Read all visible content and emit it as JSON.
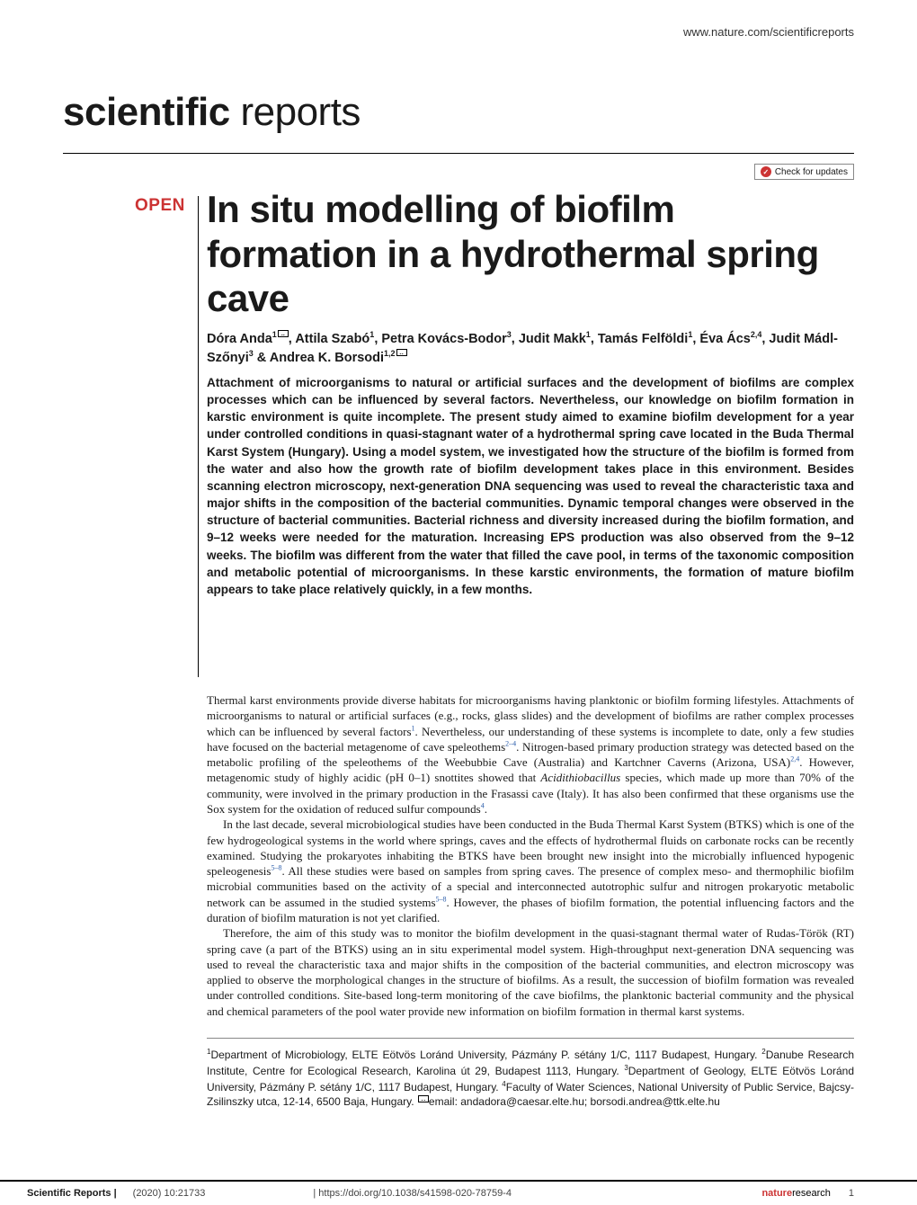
{
  "header": {
    "url": "www.nature.com/scientificreports"
  },
  "journal": {
    "bold": "scientific",
    "light": " reports"
  },
  "updates": {
    "label": "Check for updates"
  },
  "badge": {
    "open": "OPEN"
  },
  "title": "In situ modelling of biofilm formation in a hydrothermal spring cave",
  "authors_html": "Dóra Anda<sup>1</sup><span class='env-icon' data-name='envelope-icon' data-interactable='false'></span>, Attila Szabó<sup>1</sup>, Petra Kovács-Bodor<sup>3</sup>, Judit Makk<sup>1</sup>, Tamás Felföldi<sup>1</sup>, Éva Ács<sup>2,4</sup>, Judit Mádl-Szőnyi<sup>3</sup> & Andrea K. Borsodi<sup>1,2</sup><span class='env-icon' data-name='envelope-icon' data-interactable='false'></span>",
  "abstract": "Attachment of microorganisms to natural or artificial surfaces and the development of biofilms are complex processes which can be influenced by several factors. Nevertheless, our knowledge on biofilm formation in karstic environment is quite incomplete. The present study aimed to examine biofilm development for a year under controlled conditions in quasi-stagnant water of a hydrothermal spring cave located in the Buda Thermal Karst System (Hungary). Using a model system, we investigated how the structure of the biofilm is formed from the water and also how the growth rate of biofilm development takes place in this environment. Besides scanning electron microscopy, next-generation DNA sequencing was used to reveal the characteristic taxa and major shifts in the composition of the bacterial communities. Dynamic temporal changes were observed in the structure of bacterial communities. Bacterial richness and diversity increased during the biofilm formation, and 9–12 weeks were needed for the maturation. Increasing EPS production was also observed from the 9–12 weeks. The biofilm was different from the water that filled the cave pool, in terms of the taxonomic composition and metabolic potential of microorganisms. In these karstic environments, the formation of mature biofilm appears to take place relatively quickly, in a few months.",
  "body": {
    "p1": "Thermal karst environments provide diverse habitats for microorganisms having planktonic or biofilm forming lifestyles. Attachments of microorganisms to natural or artificial surfaces (e.g., rocks, glass slides) and the development of biofilms are rather complex processes which can be influenced by several factors<sup>1</sup>. Nevertheless, our understanding of these systems is incomplete to date, only a few studies have focused on the bacterial metagenome of cave speleothems<sup>2–4</sup>. Nitrogen-based primary production strategy was detected based on the metabolic profiling of the speleothems of the Weebubbie Cave (Australia) and Kartchner Caverns (Arizona, USA)<sup>2,4</sup>. However, metagenomic study of highly acidic (pH 0–1) snottites showed that <span class='ital'>Acidithiobacillus</span> species, which made up more than 70% of the community, were involved in the primary production in the Frasassi cave (Italy). It has also been confirmed that these organisms use the Sox system for the oxidation of reduced sulfur compounds<sup>4</sup>.",
    "p2": "In the last decade, several microbiological studies have been conducted in the Buda Thermal Karst System (BTKS) which is one of the few hydrogeological systems in the world where springs, caves and the effects of hydrothermal fluids on carbonate rocks can be recently examined. Studying the prokaryotes inhabiting the BTKS have been brought new insight into the microbially influenced hypogenic speleogenesis<sup>5–8</sup>. All these studies were based on samples from spring caves. The presence of complex meso- and thermophilic biofilm microbial communities based on the activity of a special and interconnected autotrophic sulfur and nitrogen prokaryotic metabolic network can be assumed in the studied systems<sup>5–8</sup>. However, the phases of biofilm formation, the potential influencing factors and the duration of biofilm maturation is not yet clarified.",
    "p3": "Therefore, the aim of this study was to monitor the biofilm development in the quasi-stagnant thermal water of Rudas-Török (RT) spring cave (a part of the BTKS) using an in situ experimental model system. High-throughput next-generation DNA sequencing was used to reveal the characteristic taxa and major shifts in the composition of the bacterial communities, and electron microscopy was applied to observe the morphological changes in the structure of biofilms. As a result, the succession of biofilm formation was revealed under controlled conditions. Site-based long-term monitoring of the cave biofilms, the planktonic bacterial community and the physical and chemical parameters of the pool water provide new information on biofilm formation in thermal karst systems."
  },
  "affiliations_html": "<sup>1</sup>Department of Microbiology, ELTE Eötvös Loránd University, Pázmány P. sétány 1/C, 1117 Budapest, Hungary. <sup>2</sup>Danube Research Institute, Centre for Ecological Research, Karolina út 29, Budapest 1113, Hungary. <sup>3</sup>Department of Geology, ELTE Eötvös Loránd University, Pázmány P. sétány 1/C, 1117 Budapest, Hungary. <sup>4</sup>Faculty of Water Sciences, National University of Public Service, Bajcsy-Zsilinszky utca, 12-14, 6500 Baja, Hungary. <span class='env-icon' data-name='envelope-icon' data-interactable='false'></span>email: andadora@caesar.elte.hu; borsodi.andrea@ttk.elte.hu",
  "footer": {
    "sr": "Scientific Reports |",
    "cite": "(2020) 10:21733",
    "doi": "| https://doi.org/10.1038/s41598-020-78759-4",
    "nr_red": "nature",
    "nr_black": "research",
    "page": "1"
  },
  "colors": {
    "accent_red": "#cc3333",
    "link_blue": "#2a5caa",
    "text": "#1a1a1a",
    "rule": "#000000",
    "bg": "#ffffff"
  }
}
